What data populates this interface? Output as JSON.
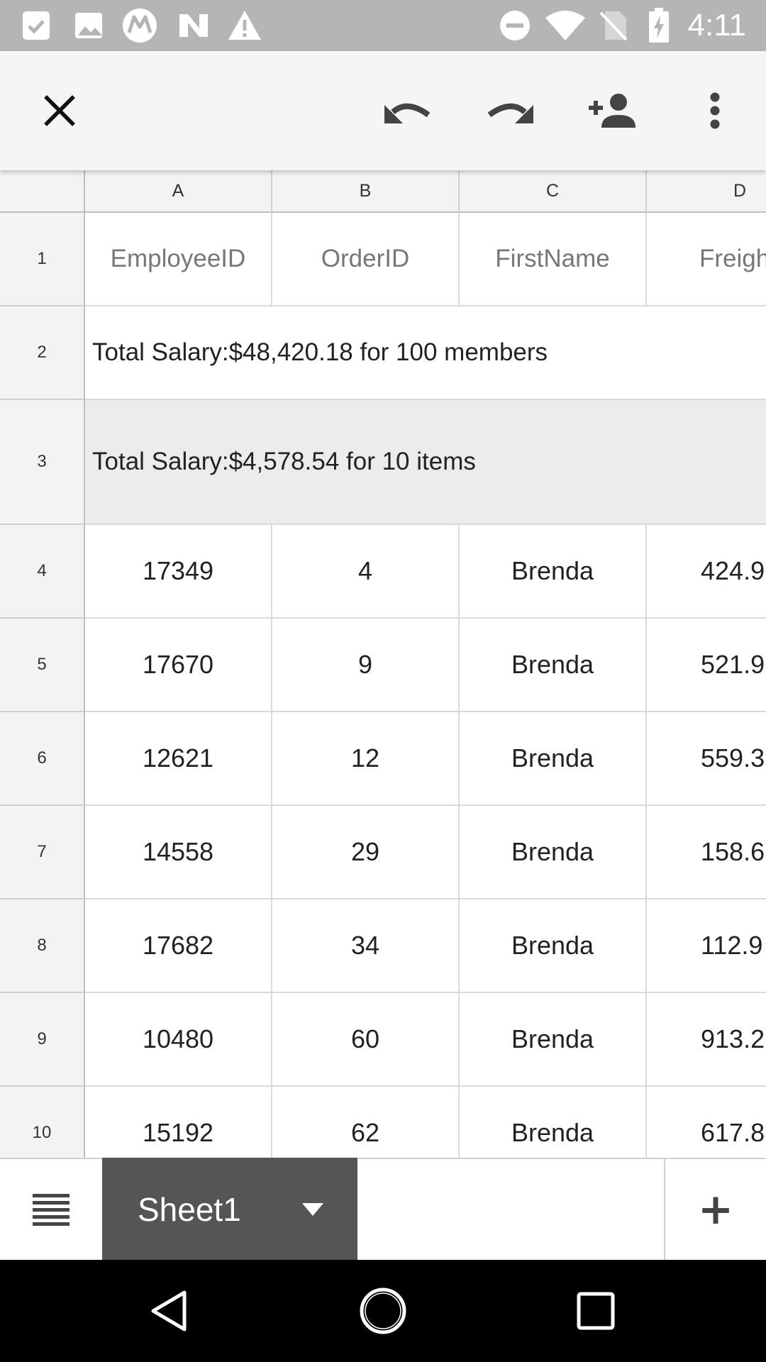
{
  "status_bar": {
    "time": "4:11",
    "left_icons": [
      "task-icon",
      "image-icon",
      "motorola-icon",
      "n-logo-icon",
      "warning-icon"
    ],
    "right_icons": [
      "do-not-disturb-icon",
      "wifi-icon",
      "no-sim-icon",
      "battery-charging-icon"
    ]
  },
  "toolbar": {
    "close": "close-icon",
    "undo": "undo-icon",
    "redo": "redo-icon",
    "share": "add-person-icon",
    "more": "more-vert-icon"
  },
  "grid": {
    "columns": [
      "A",
      "B",
      "C",
      "D"
    ],
    "row_numbers": [
      "1",
      "2",
      "3",
      "4",
      "5",
      "6",
      "7",
      "8",
      "9",
      "10"
    ],
    "header_row": [
      "EmployeeID",
      "OrderID",
      "FirstName",
      "Freigh"
    ],
    "summary_row_2": "Total Salary:$48,420.18 for 100 members",
    "summary_row_3": "Total Salary:$4,578.54 for 10 items",
    "rows": [
      [
        "17349",
        "4",
        "Brenda",
        "424.9"
      ],
      [
        "17670",
        "9",
        "Brenda",
        "521.9"
      ],
      [
        "12621",
        "12",
        "Brenda",
        "559.3"
      ],
      [
        "14558",
        "29",
        "Brenda",
        "158.6"
      ],
      [
        "17682",
        "34",
        "Brenda",
        "112.9"
      ],
      [
        "10480",
        "60",
        "Brenda",
        "913.2"
      ],
      [
        "15192",
        "62",
        "Brenda",
        "617.8"
      ]
    ]
  },
  "sheet_bar": {
    "active_sheet": "Sheet1",
    "add_label": "+"
  },
  "colors": {
    "status_bar": "#b5b5b5",
    "toolbar": "#f5f5f5",
    "sheet_tab": "#555555",
    "nav_bar": "#000000"
  }
}
